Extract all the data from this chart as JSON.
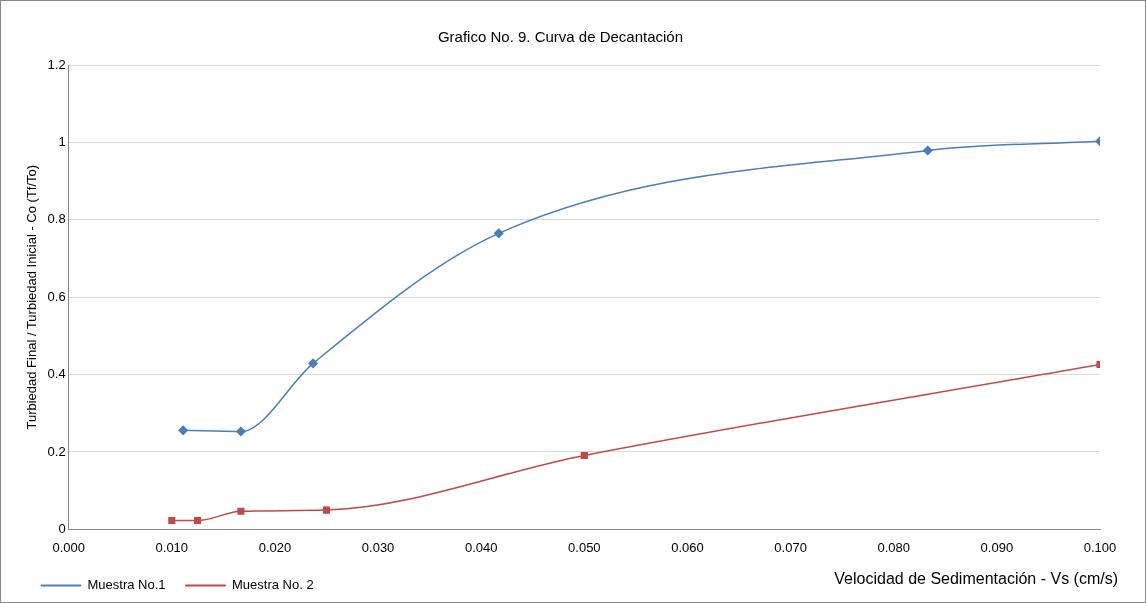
{
  "chart_data": {
    "type": "line",
    "title": "Grafico No. 9. Curva de Decantación",
    "xlabel": "Velocidad de Sedimentación - Vs (cm/s)",
    "ylabel": "Turbiedad Final / Turbiedad Inicial - Co (Tf/To)",
    "xlim": [
      0,
      0.1
    ],
    "xticks": [
      {
        "value": 0,
        "label": "0.000"
      },
      {
        "value": 0.01,
        "label": "0.010"
      },
      {
        "value": 0.02,
        "label": "0.020"
      },
      {
        "value": 0.03,
        "label": "0.030"
      },
      {
        "value": 0.04,
        "label": "0.040"
      },
      {
        "value": 0.05,
        "label": "0.050"
      },
      {
        "value": 0.06,
        "label": "0.060"
      },
      {
        "value": 0.07,
        "label": "0.070"
      },
      {
        "value": 0.08,
        "label": "0.080"
      },
      {
        "value": 0.09,
        "label": "0.090"
      },
      {
        "value": 0.1,
        "label": "0.100"
      }
    ],
    "ylim": [
      0,
      1.2
    ],
    "yticks": [
      0,
      0.2,
      0.4,
      0.6,
      0.8,
      1,
      1.2
    ],
    "grid": "y",
    "legend": "bottom left",
    "series": [
      {
        "name": "Muestra No.1",
        "color": "#4a7ebb",
        "marker": "diamond",
        "x": [
          0.0111,
          0.0167,
          0.0237,
          0.0417,
          0.0833,
          0.1
        ],
        "values": [
          0.256,
          0.253,
          0.429,
          0.765,
          0.979,
          1.003
        ]
      },
      {
        "name": "Muestra No. 2",
        "color": "#be4b48",
        "marker": "square",
        "x": [
          0.01,
          0.0125,
          0.0167,
          0.025,
          0.05,
          0.1
        ],
        "values": [
          0.023,
          0.023,
          0.047,
          0.05,
          0.191,
          0.426
        ]
      }
    ]
  }
}
